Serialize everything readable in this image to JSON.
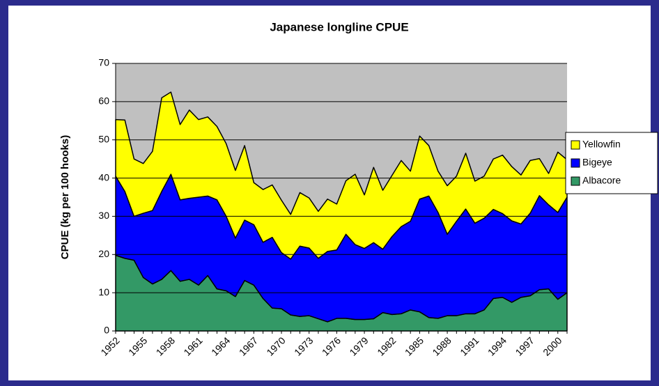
{
  "chart_data": {
    "type": "stacked-area",
    "title": "Japanese longline CPUE",
    "y_label": "CPUE (kg per 100 hooks)",
    "categories": [
      "1952",
      null,
      null,
      "1955",
      null,
      null,
      "1958",
      null,
      null,
      "1961",
      null,
      null,
      "1964",
      null,
      null,
      "1967",
      null,
      null,
      "1970",
      null,
      null,
      "1973",
      null,
      null,
      "1976",
      null,
      null,
      "1979",
      null,
      null,
      "1982",
      null,
      null,
      "1985",
      null,
      null,
      "1988",
      null,
      null,
      "1991",
      null,
      null,
      "1994",
      null,
      null,
      "1997",
      null,
      null,
      "2000",
      null
    ],
    "series": [
      {
        "name": "Albacore",
        "color": "#339966",
        "values": [
          19.8,
          19,
          18.5,
          14,
          12.3,
          13.5,
          15.8,
          13,
          13.5,
          12,
          14.5,
          11,
          10.5,
          9,
          13.2,
          12,
          8.5,
          6,
          5.8,
          4.2,
          3.8,
          4,
          3.2,
          2.4,
          3.3,
          3.3,
          3,
          3,
          3.2,
          4.8,
          4.3,
          4.5,
          5.5,
          5,
          3.5,
          3.3,
          4,
          4,
          4.5,
          4.5,
          5.5,
          8.5,
          8.8,
          7.5,
          8.8,
          9.2,
          10.8,
          11,
          8.3,
          10
        ]
      },
      {
        "name": "Bigeye",
        "color": "#0000ff",
        "values": [
          20.7,
          17.5,
          11.5,
          16.8,
          19.2,
          23,
          25.2,
          21.3,
          21.2,
          23,
          20.8,
          23.3,
          19.5,
          15.3,
          15.8,
          15.8,
          14.7,
          18.5,
          14.7,
          14.6,
          18.4,
          17.7,
          15.8,
          18.4,
          17.9,
          22,
          19.6,
          18.6,
          19.9,
          16.6,
          20.4,
          22.8,
          23.2,
          29.5,
          31.8,
          27.7,
          21.3,
          24.7,
          27.4,
          23.7,
          24,
          23.3,
          21.9,
          21.3,
          19.2,
          21.6,
          24.6,
          22,
          22.7,
          25
        ]
      },
      {
        "name": "Yellowfin",
        "color": "#ffff00",
        "values": [
          14.8,
          18.7,
          15,
          13,
          15.5,
          24.5,
          21.5,
          19.7,
          23.1,
          20.3,
          20.7,
          19.2,
          19,
          17.7,
          19.5,
          11,
          13.8,
          13.7,
          13.7,
          11.7,
          14,
          13.1,
          12.3,
          13.7,
          12,
          14,
          18.4,
          14,
          19.7,
          15.4,
          16,
          17.3,
          13.1,
          16.5,
          13.2,
          10.8,
          12.7,
          11.8,
          14.6,
          11,
          11,
          13.2,
          15.3,
          14.2,
          12.8,
          13.8,
          9.7,
          8.2,
          15.8,
          9.8
        ]
      }
    ],
    "ylim": [
      0,
      70
    ],
    "yticks": [
      0,
      10,
      20,
      30,
      40,
      50,
      60,
      70
    ],
    "grid": true,
    "plot_background": "#c0c0c0",
    "legend": "right"
  }
}
